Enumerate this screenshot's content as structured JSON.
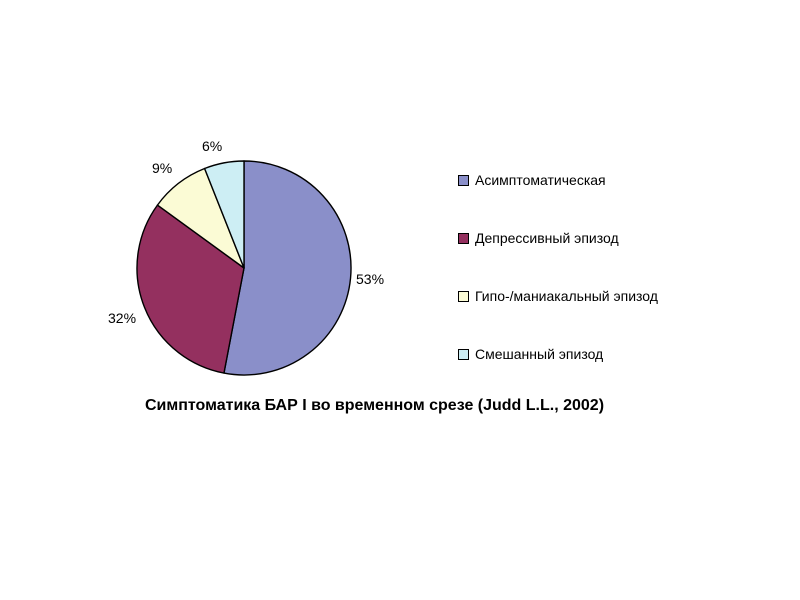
{
  "chart_data": {
    "type": "pie",
    "categories": [
      "Асимптоматическая",
      "Депрессивный эпизод",
      "Гипо-/маниакальный эпизод",
      "Смешанный эпизод"
    ],
    "values": [
      53,
      32,
      9,
      6
    ],
    "value_labels": [
      "53%",
      "32%",
      "9%",
      "6%"
    ],
    "colors": [
      "#8a8fc9",
      "#94305f",
      "#fbfbd5",
      "#cdeef4"
    ],
    "title": "Симптоматика БАР I во временном срезе (Judd L.L., 2002)",
    "legend_position": "right"
  }
}
